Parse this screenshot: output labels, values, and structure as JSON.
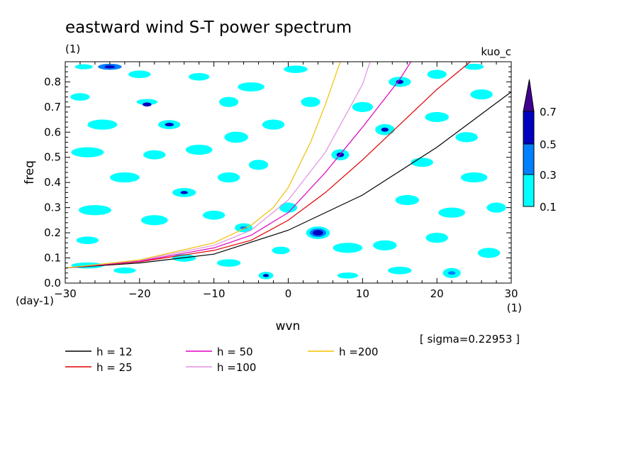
{
  "chart_data": {
    "type": "heatmap",
    "title": "eastward wind S-T power spectrum",
    "subtitle_left": "(1)",
    "subtitle_right": "kuo_c",
    "xlabel": "wvn",
    "ylabel": "freq",
    "x_unit_label": "(1)",
    "y_unit_label": "(day-1)",
    "xlim": [
      -30,
      30
    ],
    "ylim": [
      0,
      0.88
    ],
    "x_ticks": [
      -30,
      -20,
      -10,
      0,
      10,
      20,
      30
    ],
    "y_ticks": [
      0.0,
      0.1,
      0.2,
      0.3,
      0.4,
      0.5,
      0.6,
      0.7,
      0.8
    ],
    "y_tick_labels": [
      "0.0",
      "0.1",
      "0.2",
      "0.3",
      "0.4",
      "0.5",
      "0.6",
      "0.7",
      "0.8"
    ],
    "sigma_label": "[ sigma=0.22953 ]",
    "colorbar": {
      "levels": [
        "0.1",
        "0.3",
        "0.5",
        "0.7"
      ],
      "colors": [
        "#00ffff",
        "#0080ff",
        "#0000c0",
        "#400090"
      ]
    },
    "contour_patches": [
      {
        "x": -27,
        "y": 0.07,
        "rx": 2.2,
        "ry": 0.012,
        "level": 0
      },
      {
        "x": -24,
        "y": 0.86,
        "rx": 1.6,
        "ry": 0.012,
        "level": 1
      },
      {
        "x": -24,
        "y": 0.86,
        "rx": 0.7,
        "ry": 0.006,
        "level": 2
      },
      {
        "x": -27.5,
        "y": 0.86,
        "rx": 1.2,
        "ry": 0.01,
        "level": 0
      },
      {
        "x": -20,
        "y": 0.83,
        "rx": 1.5,
        "ry": 0.015,
        "level": 0
      },
      {
        "x": -28,
        "y": 0.74,
        "rx": 1.3,
        "ry": 0.015,
        "level": 0
      },
      {
        "x": -19,
        "y": 0.72,
        "rx": 1.4,
        "ry": 0.012,
        "level": 0
      },
      {
        "x": -19,
        "y": 0.71,
        "rx": 0.6,
        "ry": 0.008,
        "level": 2
      },
      {
        "x": -25,
        "y": 0.63,
        "rx": 2.0,
        "ry": 0.02,
        "level": 0
      },
      {
        "x": -16,
        "y": 0.63,
        "rx": 1.5,
        "ry": 0.018,
        "level": 0
      },
      {
        "x": -16,
        "y": 0.63,
        "rx": 0.6,
        "ry": 0.007,
        "level": 2
      },
      {
        "x": -27,
        "y": 0.52,
        "rx": 2.2,
        "ry": 0.02,
        "level": 0
      },
      {
        "x": -18,
        "y": 0.51,
        "rx": 1.5,
        "ry": 0.018,
        "level": 0
      },
      {
        "x": -12,
        "y": 0.53,
        "rx": 1.8,
        "ry": 0.02,
        "level": 0
      },
      {
        "x": -7,
        "y": 0.58,
        "rx": 1.6,
        "ry": 0.022,
        "level": 0
      },
      {
        "x": -2,
        "y": 0.63,
        "rx": 1.5,
        "ry": 0.02,
        "level": 0
      },
      {
        "x": -5,
        "y": 0.78,
        "rx": 1.8,
        "ry": 0.018,
        "level": 0
      },
      {
        "x": 1,
        "y": 0.85,
        "rx": 1.6,
        "ry": 0.015,
        "level": 0
      },
      {
        "x": -12,
        "y": 0.82,
        "rx": 1.4,
        "ry": 0.015,
        "level": 0
      },
      {
        "x": -22,
        "y": 0.42,
        "rx": 2.0,
        "ry": 0.02,
        "level": 0
      },
      {
        "x": -14,
        "y": 0.36,
        "rx": 1.6,
        "ry": 0.018,
        "level": 0
      },
      {
        "x": -14,
        "y": 0.36,
        "rx": 0.5,
        "ry": 0.006,
        "level": 2
      },
      {
        "x": -8,
        "y": 0.42,
        "rx": 1.5,
        "ry": 0.02,
        "level": 0
      },
      {
        "x": -26,
        "y": 0.29,
        "rx": 2.2,
        "ry": 0.02,
        "level": 0
      },
      {
        "x": -18,
        "y": 0.25,
        "rx": 1.8,
        "ry": 0.02,
        "level": 0
      },
      {
        "x": -10,
        "y": 0.27,
        "rx": 1.5,
        "ry": 0.018,
        "level": 0
      },
      {
        "x": -27,
        "y": 0.17,
        "rx": 1.5,
        "ry": 0.015,
        "level": 0
      },
      {
        "x": -6,
        "y": 0.22,
        "rx": 1.2,
        "ry": 0.018,
        "level": 0
      },
      {
        "x": -6,
        "y": 0.22,
        "rx": 0.5,
        "ry": 0.006,
        "level": 1
      },
      {
        "x": -3,
        "y": 0.03,
        "rx": 1.0,
        "ry": 0.015,
        "level": 0
      },
      {
        "x": -3,
        "y": 0.03,
        "rx": 0.4,
        "ry": 0.006,
        "level": 2
      },
      {
        "x": -8,
        "y": 0.08,
        "rx": 1.6,
        "ry": 0.015,
        "level": 0
      },
      {
        "x": 0,
        "y": 0.3,
        "rx": 1.2,
        "ry": 0.02,
        "level": 0
      },
      {
        "x": 4,
        "y": 0.2,
        "rx": 1.6,
        "ry": 0.025,
        "level": 0
      },
      {
        "x": 4,
        "y": 0.2,
        "rx": 1.1,
        "ry": 0.017,
        "level": 1
      },
      {
        "x": 4,
        "y": 0.2,
        "rx": 0.7,
        "ry": 0.011,
        "level": 2
      },
      {
        "x": 8,
        "y": 0.14,
        "rx": 2.0,
        "ry": 0.02,
        "level": 0
      },
      {
        "x": 13,
        "y": 0.15,
        "rx": 1.6,
        "ry": 0.02,
        "level": 0
      },
      {
        "x": 7,
        "y": 0.51,
        "rx": 1.2,
        "ry": 0.022,
        "level": 0
      },
      {
        "x": 7,
        "y": 0.51,
        "rx": 0.5,
        "ry": 0.009,
        "level": 2
      },
      {
        "x": 13,
        "y": 0.61,
        "rx": 1.3,
        "ry": 0.022,
        "level": 0
      },
      {
        "x": 13,
        "y": 0.61,
        "rx": 0.5,
        "ry": 0.008,
        "level": 2
      },
      {
        "x": 15,
        "y": 0.8,
        "rx": 1.5,
        "ry": 0.02,
        "level": 0
      },
      {
        "x": 15,
        "y": 0.8,
        "rx": 0.5,
        "ry": 0.008,
        "level": 2
      },
      {
        "x": 10,
        "y": 0.7,
        "rx": 1.4,
        "ry": 0.02,
        "level": 0
      },
      {
        "x": 20,
        "y": 0.66,
        "rx": 1.6,
        "ry": 0.02,
        "level": 0
      },
      {
        "x": 26,
        "y": 0.75,
        "rx": 1.5,
        "ry": 0.02,
        "level": 0
      },
      {
        "x": 24,
        "y": 0.58,
        "rx": 1.5,
        "ry": 0.02,
        "level": 0
      },
      {
        "x": 18,
        "y": 0.48,
        "rx": 1.5,
        "ry": 0.018,
        "level": 0
      },
      {
        "x": 25,
        "y": 0.42,
        "rx": 1.8,
        "ry": 0.02,
        "level": 0
      },
      {
        "x": 16,
        "y": 0.33,
        "rx": 1.6,
        "ry": 0.02,
        "level": 0
      },
      {
        "x": 22,
        "y": 0.28,
        "rx": 1.8,
        "ry": 0.02,
        "level": 0
      },
      {
        "x": 28,
        "y": 0.3,
        "rx": 1.3,
        "ry": 0.02,
        "level": 0
      },
      {
        "x": 20,
        "y": 0.18,
        "rx": 1.5,
        "ry": 0.02,
        "level": 0
      },
      {
        "x": 27,
        "y": 0.12,
        "rx": 1.5,
        "ry": 0.02,
        "level": 0
      },
      {
        "x": 22,
        "y": 0.04,
        "rx": 1.2,
        "ry": 0.02,
        "level": 0
      },
      {
        "x": 22,
        "y": 0.04,
        "rx": 0.5,
        "ry": 0.007,
        "level": 1
      },
      {
        "x": 15,
        "y": 0.05,
        "rx": 1.6,
        "ry": 0.015,
        "level": 0
      },
      {
        "x": 8,
        "y": 0.03,
        "rx": 1.4,
        "ry": 0.012,
        "level": 0
      },
      {
        "x": -1,
        "y": 0.13,
        "rx": 1.2,
        "ry": 0.015,
        "level": 0
      },
      {
        "x": -14,
        "y": 0.1,
        "rx": 1.6,
        "ry": 0.015,
        "level": 0
      },
      {
        "x": -22,
        "y": 0.05,
        "rx": 1.5,
        "ry": 0.012,
        "level": 0
      },
      {
        "x": -4,
        "y": 0.47,
        "rx": 1.3,
        "ry": 0.02,
        "level": 0
      },
      {
        "x": 3,
        "y": 0.72,
        "rx": 1.3,
        "ry": 0.02,
        "level": 0
      },
      {
        "x": 25,
        "y": 0.86,
        "rx": 1.3,
        "ry": 0.012,
        "level": 0
      },
      {
        "x": -8,
        "y": 0.72,
        "rx": 1.3,
        "ry": 0.02,
        "level": 0
      },
      {
        "x": 20,
        "y": 0.83,
        "rx": 1.3,
        "ry": 0.018,
        "level": 0
      }
    ],
    "series": [
      {
        "name": "h = 12",
        "color": "#000000",
        "x": [
          -30,
          -20,
          -10,
          0,
          10,
          20,
          30
        ],
        "y": [
          0.06,
          0.08,
          0.115,
          0.21,
          0.35,
          0.54,
          0.76
        ]
      },
      {
        "name": "h = 25",
        "color": "#e00000",
        "x": [
          -30,
          -20,
          -10,
          -5,
          0,
          5,
          10,
          15,
          20,
          24.5
        ],
        "y": [
          0.06,
          0.085,
          0.13,
          0.17,
          0.25,
          0.36,
          0.49,
          0.63,
          0.77,
          0.88
        ]
      },
      {
        "name": "h = 50",
        "color": "#e000c0",
        "x": [
          -30,
          -20,
          -10,
          -5,
          0,
          5,
          10,
          15,
          16.5
        ],
        "y": [
          0.06,
          0.087,
          0.14,
          0.19,
          0.28,
          0.44,
          0.62,
          0.81,
          0.88
        ]
      },
      {
        "name": "h =100",
        "color": "#e090e0",
        "x": [
          -30,
          -20,
          -10,
          -5,
          0,
          5,
          10,
          11
        ],
        "y": [
          0.06,
          0.09,
          0.15,
          0.21,
          0.33,
          0.52,
          0.79,
          0.88
        ]
      },
      {
        "name": "h =200",
        "color": "#f0c000",
        "x": [
          -30,
          -20,
          -10,
          -5,
          -2,
          0,
          3,
          5,
          7
        ],
        "y": [
          0.06,
          0.092,
          0.16,
          0.23,
          0.3,
          0.38,
          0.56,
          0.71,
          0.88
        ]
      }
    ]
  }
}
